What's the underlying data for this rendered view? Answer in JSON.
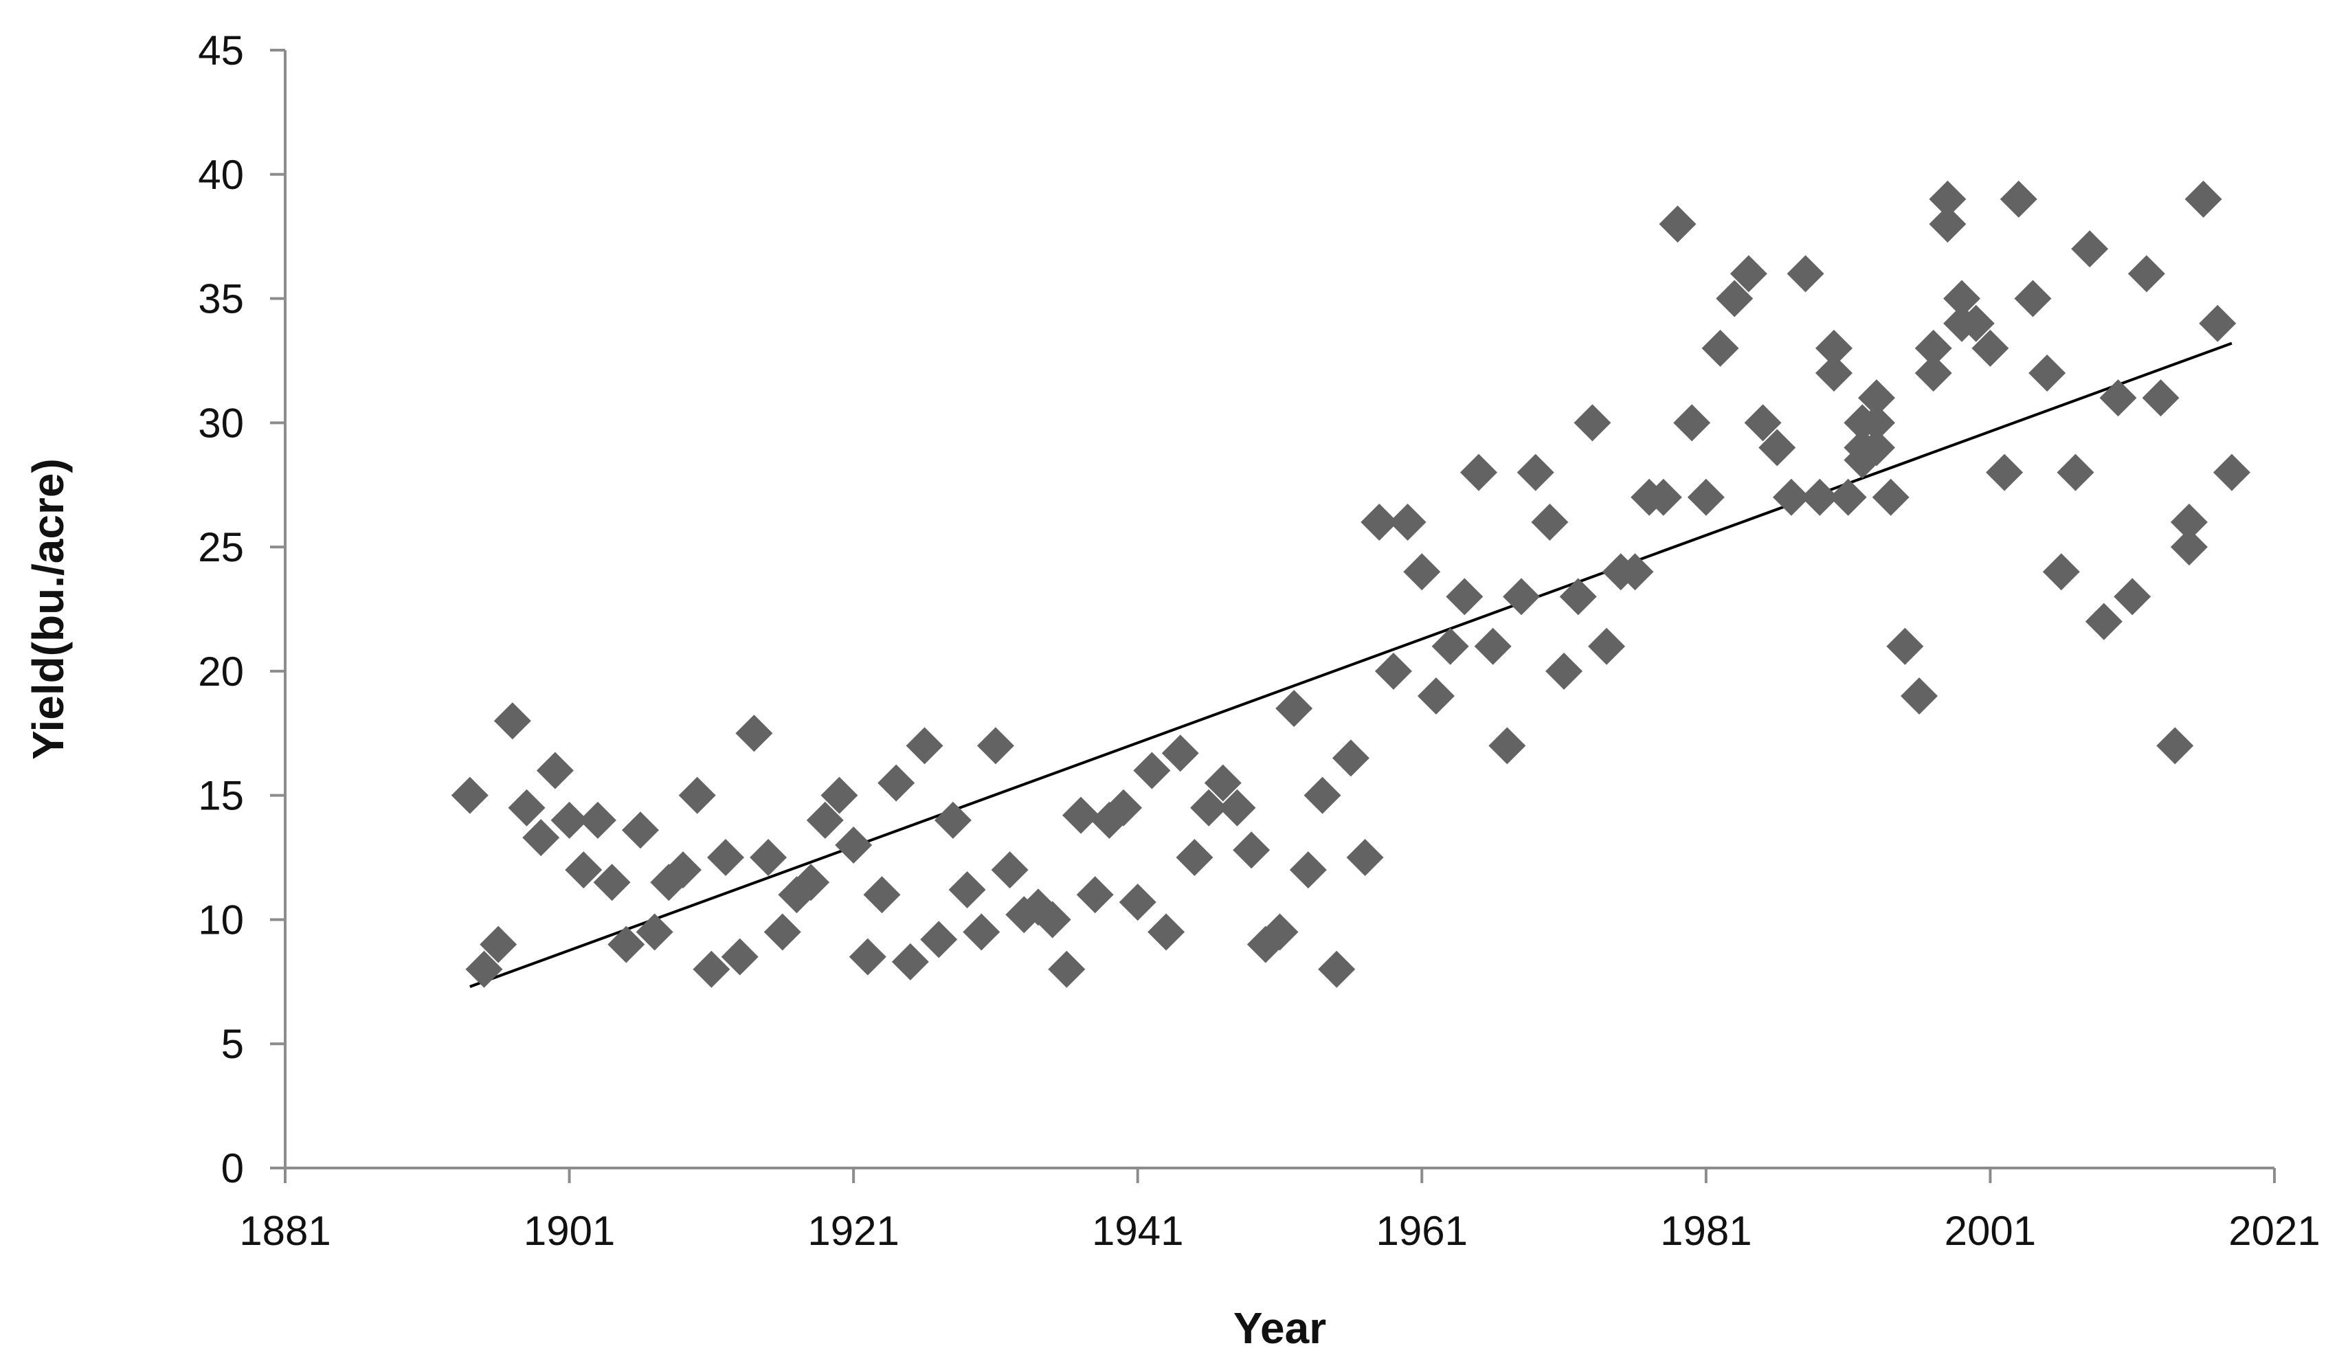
{
  "chart_data": {
    "type": "scatter",
    "title": "",
    "xlabel": "Year",
    "ylabel": "Yield(bu./acre)",
    "xlim": [
      1881,
      2021
    ],
    "ylim": [
      0,
      45
    ],
    "x_ticks": [
      1881,
      1901,
      1921,
      1941,
      1961,
      1981,
      2001,
      2021
    ],
    "y_ticks": [
      0,
      5,
      10,
      15,
      20,
      25,
      30,
      35,
      40,
      45
    ],
    "grid": false,
    "legend": "none",
    "marker": "diamond",
    "colors": {
      "marker": "#636363",
      "trendline": "#000000",
      "axis": "#8c8c8c",
      "text": "#111111"
    },
    "series": [
      {
        "points": [
          [
            1894,
            15
          ],
          [
            1895,
            8
          ],
          [
            1896,
            9
          ],
          [
            1897,
            18
          ],
          [
            1898,
            14.5
          ],
          [
            1899,
            13.3
          ],
          [
            1900,
            16
          ],
          [
            1901,
            14
          ],
          [
            1902,
            12
          ],
          [
            1903,
            14
          ],
          [
            1904,
            11.5
          ],
          [
            1905,
            9
          ],
          [
            1906,
            13.6
          ],
          [
            1907,
            9.5
          ],
          [
            1908,
            11.5
          ],
          [
            1909,
            12
          ],
          [
            1910,
            15
          ],
          [
            1911,
            8
          ],
          [
            1912,
            12.5
          ],
          [
            1913,
            8.5
          ],
          [
            1914,
            17.5
          ],
          [
            1915,
            12.5
          ],
          [
            1916,
            9.5
          ],
          [
            1917,
            11
          ],
          [
            1918,
            11.5
          ],
          [
            1919,
            14
          ],
          [
            1920,
            15
          ],
          [
            1921,
            13
          ],
          [
            1922,
            8.5
          ],
          [
            1923,
            11
          ],
          [
            1924,
            15.5
          ],
          [
            1925,
            8.3
          ],
          [
            1926,
            17
          ],
          [
            1927,
            9.2
          ],
          [
            1928,
            14
          ],
          [
            1929,
            11.2
          ],
          [
            1930,
            9.5
          ],
          [
            1931,
            17
          ],
          [
            1932,
            12
          ],
          [
            1933,
            10.2
          ],
          [
            1934,
            10.5
          ],
          [
            1935,
            10
          ],
          [
            1936,
            8
          ],
          [
            1937,
            14.2
          ],
          [
            1938,
            11
          ],
          [
            1939,
            14
          ],
          [
            1940,
            14.5
          ],
          [
            1941,
            10.7
          ],
          [
            1942,
            16
          ],
          [
            1943,
            9.5
          ],
          [
            1944,
            16.7
          ],
          [
            1945,
            12.5
          ],
          [
            1946,
            14.5
          ],
          [
            1947,
            15.5
          ],
          [
            1948,
            14.5
          ],
          [
            1949,
            12.8
          ],
          [
            1950,
            9
          ],
          [
            1951,
            9.5
          ],
          [
            1952,
            18.5
          ],
          [
            1953,
            12
          ],
          [
            1954,
            15
          ],
          [
            1955,
            8
          ],
          [
            1956,
            16.5
          ],
          [
            1957,
            12.5
          ],
          [
            1958,
            26
          ],
          [
            1959,
            20
          ],
          [
            1960,
            26
          ],
          [
            1961,
            24
          ],
          [
            1962,
            19
          ],
          [
            1963,
            21
          ],
          [
            1964,
            23
          ],
          [
            1965,
            28
          ],
          [
            1966,
            21
          ],
          [
            1967,
            17
          ],
          [
            1968,
            23
          ],
          [
            1969,
            28
          ],
          [
            1970,
            26
          ],
          [
            1971,
            20
          ],
          [
            1972,
            23
          ],
          [
            1973,
            30
          ],
          [
            1974,
            21
          ],
          [
            1975,
            24
          ],
          [
            1976,
            24
          ],
          [
            1977,
            27
          ],
          [
            1978,
            27
          ],
          [
            1979,
            38
          ],
          [
            1980,
            30
          ],
          [
            1981,
            27
          ],
          [
            1982,
            33
          ],
          [
            1983,
            35
          ],
          [
            1984,
            36
          ],
          [
            1985,
            30
          ],
          [
            1986,
            29
          ],
          [
            1987,
            27
          ],
          [
            1988,
            36
          ],
          [
            1989,
            27
          ],
          [
            1990,
            33
          ],
          [
            1990,
            32
          ],
          [
            1991,
            27
          ],
          [
            1992,
            29
          ],
          [
            1992,
            30
          ],
          [
            1992,
            28.5
          ],
          [
            1993,
            31
          ],
          [
            1993,
            29
          ],
          [
            1993,
            30
          ],
          [
            1994,
            27
          ],
          [
            1995,
            21
          ],
          [
            1996,
            19
          ],
          [
            1997,
            33
          ],
          [
            1997,
            32
          ],
          [
            1998,
            39
          ],
          [
            1998,
            38
          ],
          [
            1999,
            35
          ],
          [
            1999,
            34
          ],
          [
            2000,
            34
          ],
          [
            2001,
            33
          ],
          [
            2002,
            28
          ],
          [
            2003,
            39
          ],
          [
            2004,
            35
          ],
          [
            2005,
            32
          ],
          [
            2006,
            24
          ],
          [
            2007,
            28
          ],
          [
            2008,
            37
          ],
          [
            2009,
            22
          ],
          [
            2010,
            31
          ],
          [
            2011,
            23
          ],
          [
            2012,
            36
          ],
          [
            2013,
            31
          ],
          [
            2014,
            17
          ],
          [
            2015,
            26
          ],
          [
            2015,
            25
          ],
          [
            2016,
            39
          ],
          [
            2017,
            34
          ],
          [
            2018,
            28
          ]
        ]
      }
    ],
    "trendline": {
      "type": "linear",
      "x": [
        1894,
        2018
      ],
      "y": [
        7.3,
        33.2
      ]
    }
  }
}
